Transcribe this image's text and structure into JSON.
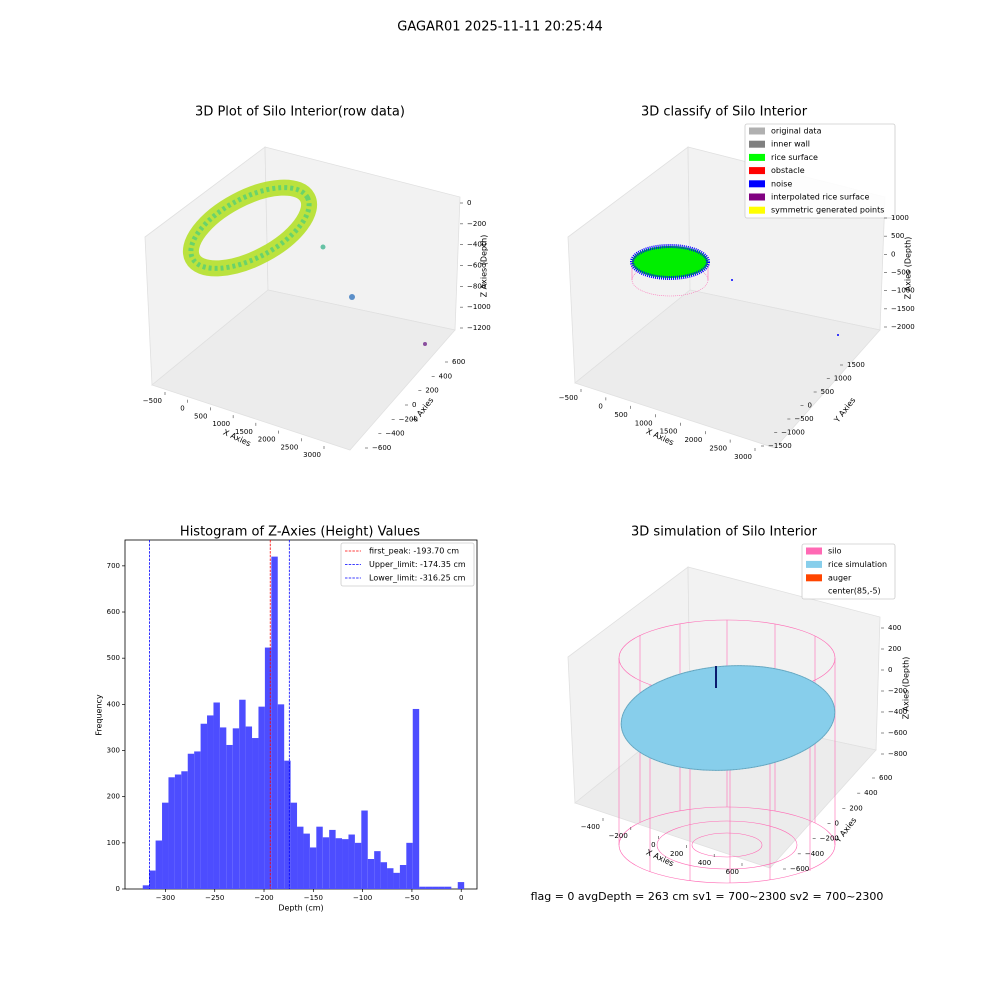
{
  "title": "GAGAR01 2025-11-11 20:25:44",
  "chart_data": [
    {
      "type": "scatter3d",
      "title": "3D Plot of Silo Interior(row data)",
      "xlabel": "X Axies",
      "ylabel": "Y Axies",
      "zlabel": "Z Axies (Depth)",
      "xlim": [
        -500,
        3000
      ],
      "xticks": [
        {
          "value": -500,
          "label": "−500"
        },
        0,
        500,
        1000,
        1500,
        2000,
        2500,
        3000
      ],
      "ylim": [
        -600,
        600
      ],
      "yticks": [
        {
          "value": -600,
          "label": "−600"
        },
        {
          "value": -400,
          "label": "−400"
        },
        {
          "value": -200,
          "label": "−200"
        },
        0,
        200,
        400,
        600
      ],
      "zlim": [
        0,
        -1200
      ],
      "zticks": [
        0,
        {
          "value": -200,
          "label": "−200"
        },
        {
          "value": -400,
          "label": "−400"
        },
        {
          "value": -600,
          "label": "−600"
        },
        {
          "value": -800,
          "label": "−800"
        },
        {
          "value": -1000,
          "label": "−1000"
        },
        {
          "value": -1200,
          "label": "−1200"
        }
      ]
    },
    {
      "type": "scatter3d",
      "title": "3D classify of Silo Interior",
      "xlabel": "X Axies",
      "ylabel": "Y Axies",
      "zlabel": "Z Axies (Depth)",
      "xlim": [
        -500,
        3000
      ],
      "xticks": [
        {
          "value": -500,
          "label": "−500"
        },
        0,
        500,
        1000,
        1500,
        2000,
        2500,
        3000
      ],
      "ylim": [
        -1500,
        1500
      ],
      "yticks": [
        {
          "value": -1500,
          "label": "−1500"
        },
        {
          "value": -1000,
          "label": "−1000"
        },
        {
          "value": -500,
          "label": "−500"
        },
        0,
        500,
        1000,
        1500
      ],
      "zlim": [
        1000,
        -2000
      ],
      "zticks": [
        1000,
        500,
        0,
        {
          "value": -500,
          "label": "−500"
        },
        {
          "value": -1000,
          "label": "−1000"
        },
        {
          "value": -1500,
          "label": "−1500"
        },
        {
          "value": -2000,
          "label": "−2000"
        }
      ],
      "series": [
        {
          "name": "original data",
          "color": "#b0b0b0"
        },
        {
          "name": "inner wall",
          "color": "#808080"
        },
        {
          "name": "rice surface",
          "color": "#00ff00"
        },
        {
          "name": "obstacle",
          "color": "#ff0000"
        },
        {
          "name": "noise",
          "color": "#0000ff"
        },
        {
          "name": "interpolated rice surface",
          "color": "#800080"
        },
        {
          "name": "symmetric generated points",
          "color": "#ffff00"
        }
      ]
    },
    {
      "type": "histogram",
      "title": "Histogram of Z-Axies (Height) Values",
      "xlabel": "Depth (cm)",
      "ylabel": "Frequency",
      "color": "#4d4dff",
      "xlim": [
        -341,
        16
      ],
      "xticks": [
        {
          "value": -300,
          "label": "−300"
        },
        {
          "value": -250,
          "label": "−250"
        },
        {
          "value": -200,
          "label": "−200"
        },
        {
          "value": -150,
          "label": "−150"
        },
        {
          "value": -100,
          "label": "−100"
        },
        {
          "value": -50,
          "label": "−50"
        },
        0
      ],
      "ylim": [
        0,
        756
      ],
      "yticks": [
        0,
        100,
        200,
        300,
        400,
        500,
        600,
        700
      ],
      "bins": [
        -323,
        -316.48,
        -309.96,
        -303.44,
        -296.92,
        -290.4,
        -283.88,
        -277.36,
        -270.84,
        -264.32,
        -257.8,
        -251.28,
        -244.76,
        -238.24,
        -231.72,
        -225.2,
        -218.68,
        -212.16,
        -205.64,
        -199.12,
        -192.6,
        -186.08,
        -179.56,
        -173.04,
        -166.52,
        -160,
        -153.48,
        -146.96,
        -140.44,
        -133.92,
        -127.4,
        -120.88,
        -114.36,
        -107.84,
        -101.32,
        -94.8,
        -88.28,
        -81.76,
        -75.24,
        -68.72,
        -62.2,
        -55.68,
        -49.16,
        -42.64,
        -36.12,
        -29.6,
        -23.08,
        -16.56,
        -10.04,
        -3.52,
        3
      ],
      "values": [
        8,
        40,
        105,
        187,
        242,
        248,
        255,
        293,
        298,
        358,
        376,
        404,
        350,
        312,
        348,
        410,
        352,
        327,
        395,
        523,
        720,
        400,
        278,
        187,
        135,
        120,
        90,
        135,
        112,
        128,
        110,
        108,
        118,
        100,
        170,
        65,
        82,
        58,
        45,
        35,
        52,
        100,
        390,
        5,
        5,
        5,
        5,
        5,
        0,
        15
      ],
      "vlines": [
        {
          "name": "first_peak: -193.70 cm",
          "value": -193.7,
          "color": "#ff0000"
        },
        {
          "name": "Upper_limit: -174.35 cm",
          "value": -174.35,
          "color": "#0000ff"
        },
        {
          "name": "Lower_limit: -316.25 cm",
          "value": -316.25,
          "color": "#0000ff"
        }
      ]
    },
    {
      "type": "scatter3d",
      "title": "3D simulation of Silo Interior",
      "xlabel": "X Axies",
      "ylabel": "Y Axies",
      "zlabel": "Z Axies (Depth)",
      "xlim": [
        -400,
        600
      ],
      "xticks": [
        {
          "value": -400,
          "label": "−400"
        },
        {
          "value": -200,
          "label": "−200"
        },
        0,
        200,
        400,
        600
      ],
      "ylim": [
        -600,
        600
      ],
      "yticks": [
        {
          "value": -600,
          "label": "−600"
        },
        {
          "value": -400,
          "label": "−400"
        },
        {
          "value": -200,
          "label": "−200"
        },
        0,
        200,
        400,
        600
      ],
      "zlim": [
        400,
        -800
      ],
      "zticks": [
        400,
        200,
        0,
        {
          "value": -200,
          "label": "−200"
        },
        {
          "value": -400,
          "label": "−400"
        },
        {
          "value": -600,
          "label": "−600"
        },
        {
          "value": -800,
          "label": "−800"
        }
      ],
      "series": [
        {
          "name": "silo",
          "color": "#ff69b4"
        },
        {
          "name": "rice simulation",
          "color": "#87ceeb"
        },
        {
          "name": "auger",
          "color": "#ff4500"
        },
        {
          "name": "center(85,-5)",
          "color": "#ffffff"
        }
      ],
      "annotation": "flag = 0     avgDepth = 263 cm  sv1 = 700~2300  sv2 = 700~2300"
    }
  ]
}
